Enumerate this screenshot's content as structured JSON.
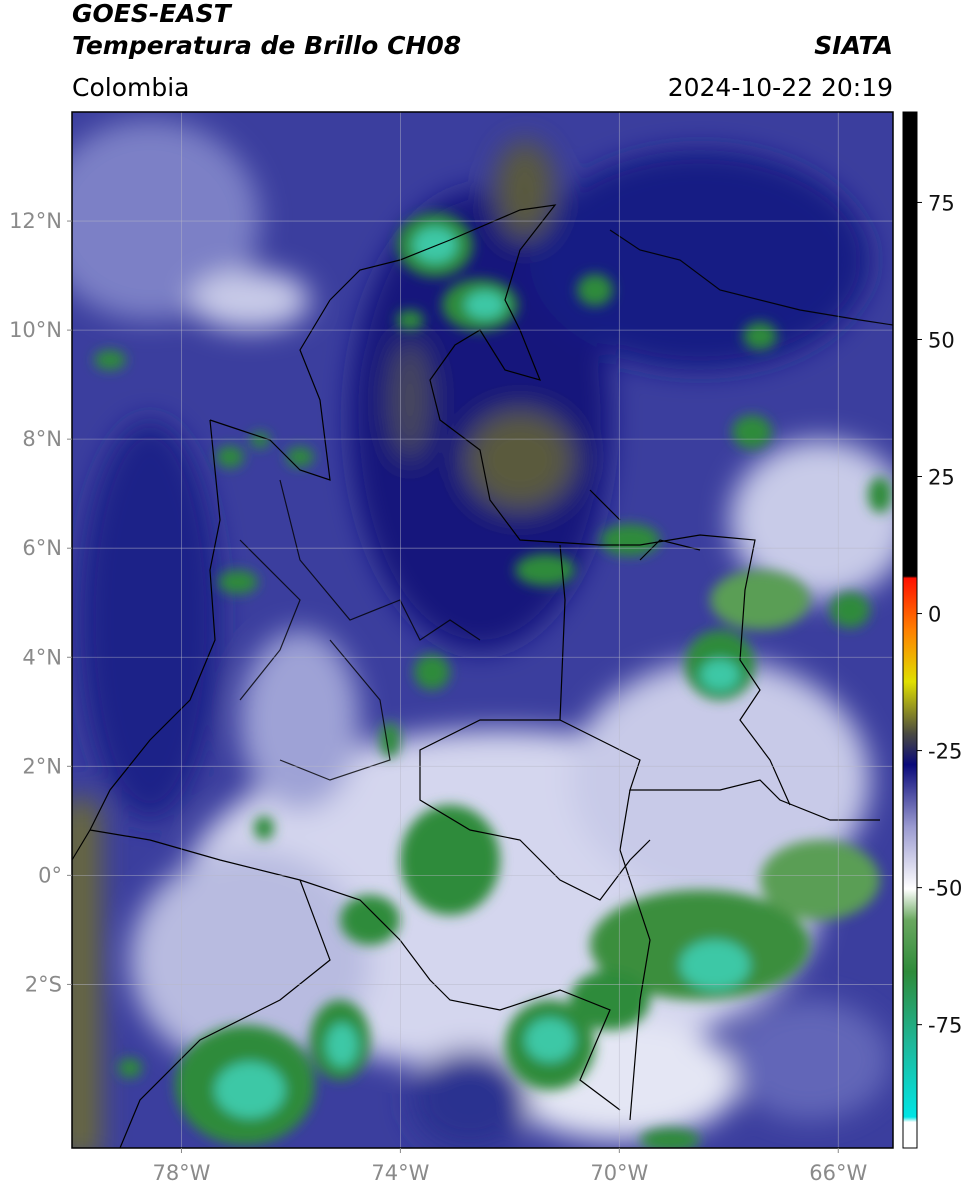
{
  "header": {
    "title_line1": "GOES-EAST",
    "title_line2": "Temperatura de Brillo CH08",
    "source": "SIATA",
    "region": "Colombia",
    "datetime": "2024-10-22 20:19"
  },
  "map": {
    "lon_range": [
      -80,
      -65
    ],
    "lat_range": [
      -5,
      14
    ],
    "lat_ticks": [
      {
        "value": 12,
        "label": "12°N"
      },
      {
        "value": 10,
        "label": "10°N"
      },
      {
        "value": 8,
        "label": "8°N"
      },
      {
        "value": 6,
        "label": "6°N"
      },
      {
        "value": 4,
        "label": "4°N"
      },
      {
        "value": 2,
        "label": "2°N"
      },
      {
        "value": 0,
        "label": "0°"
      },
      {
        "value": -2,
        "label": "2°S"
      }
    ],
    "lon_ticks": [
      {
        "value": -78,
        "label": "78°W"
      },
      {
        "value": -74,
        "label": "74°W"
      },
      {
        "value": -70,
        "label": "70°W"
      },
      {
        "value": -66,
        "label": "66°W"
      }
    ]
  },
  "colorbar": {
    "range": [
      -97.5,
      91.5
    ],
    "ticks": [
      75,
      50,
      25,
      0,
      -25,
      -50,
      -75
    ]
  }
}
